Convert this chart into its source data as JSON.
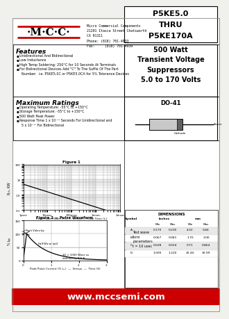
{
  "bg_color": "#f0f0ec",
  "white": "#ffffff",
  "black": "#000000",
  "red": "#cc0000",
  "title_part": "P5KE5.0\nTHRU\nP5KE170A",
  "title_desc": "500 Watt\nTransient Voltage\nSuppressors\n5.0 to 170 Volts",
  "do_label": "DO-41",
  "company_name": "·M·C·C·",
  "company_addr": "Micro Commercial Components\n21201 Itasca Street Chatsworth\nCA 91311\nPhone: (818) 701-4933\nFax:     (818) 701-4939",
  "features_title": "Features",
  "features": [
    "Unidirectional And Bidirectional",
    "Low Inductance",
    "High Temp Soldering: 250°C for 10 Seconds At Terminals",
    "For Bidirectional Devices Add \"C\" To The Suffix Of The Part\n  Number:  i.e. P5KE5.0C or P5KE5.0CA for 5% Tolerance Devices"
  ],
  "maxrat_title": "Maximum Ratings",
  "maxrat": [
    "Operating Temperature: -55°C to +150°C",
    "Storage Temperature: -55°C to +150°C",
    "500 Watt Peak Power",
    "Response Time 1 x 10⁻¹² Seconds For Unidirectional and\n  5 x 10⁻¹² For Bidirectional"
  ],
  "website": "www.mccsemi.com",
  "fig1_title": "Figure 1",
  "fig1_ylabel": "Pₐₖ, KW",
  "fig1_xlabel": "Peak Pulse Power (P₂₂) — versus — Pulse Time (t₂)",
  "fig2_title": "Figure 2 — Pulse Waveform",
  "fig2_xlabel": "Peak Pulse Current (% I₂₂)  —  Versus  —  Time (S)",
  "fig2_note": "Test wave\nform\nparameters\nt = 10 usec",
  "table_title": "DIMENSIONS",
  "table_headers": [
    "Symbol",
    "Inches",
    "mm"
  ],
  "table_subheaders": [
    "Min",
    "Max",
    "Min",
    "Max"
  ],
  "table_rows": [
    [
      "A",
      "0.170",
      "0.230",
      "4.32",
      "5.84"
    ],
    [
      "B",
      "0.067",
      "0.081",
      "1.70",
      "2.06"
    ],
    [
      "C",
      "0.028",
      "0.034",
      "0.71",
      "0.864"
    ],
    [
      "D",
      "1.000",
      "1.220",
      "25.40",
      "30.99"
    ]
  ]
}
